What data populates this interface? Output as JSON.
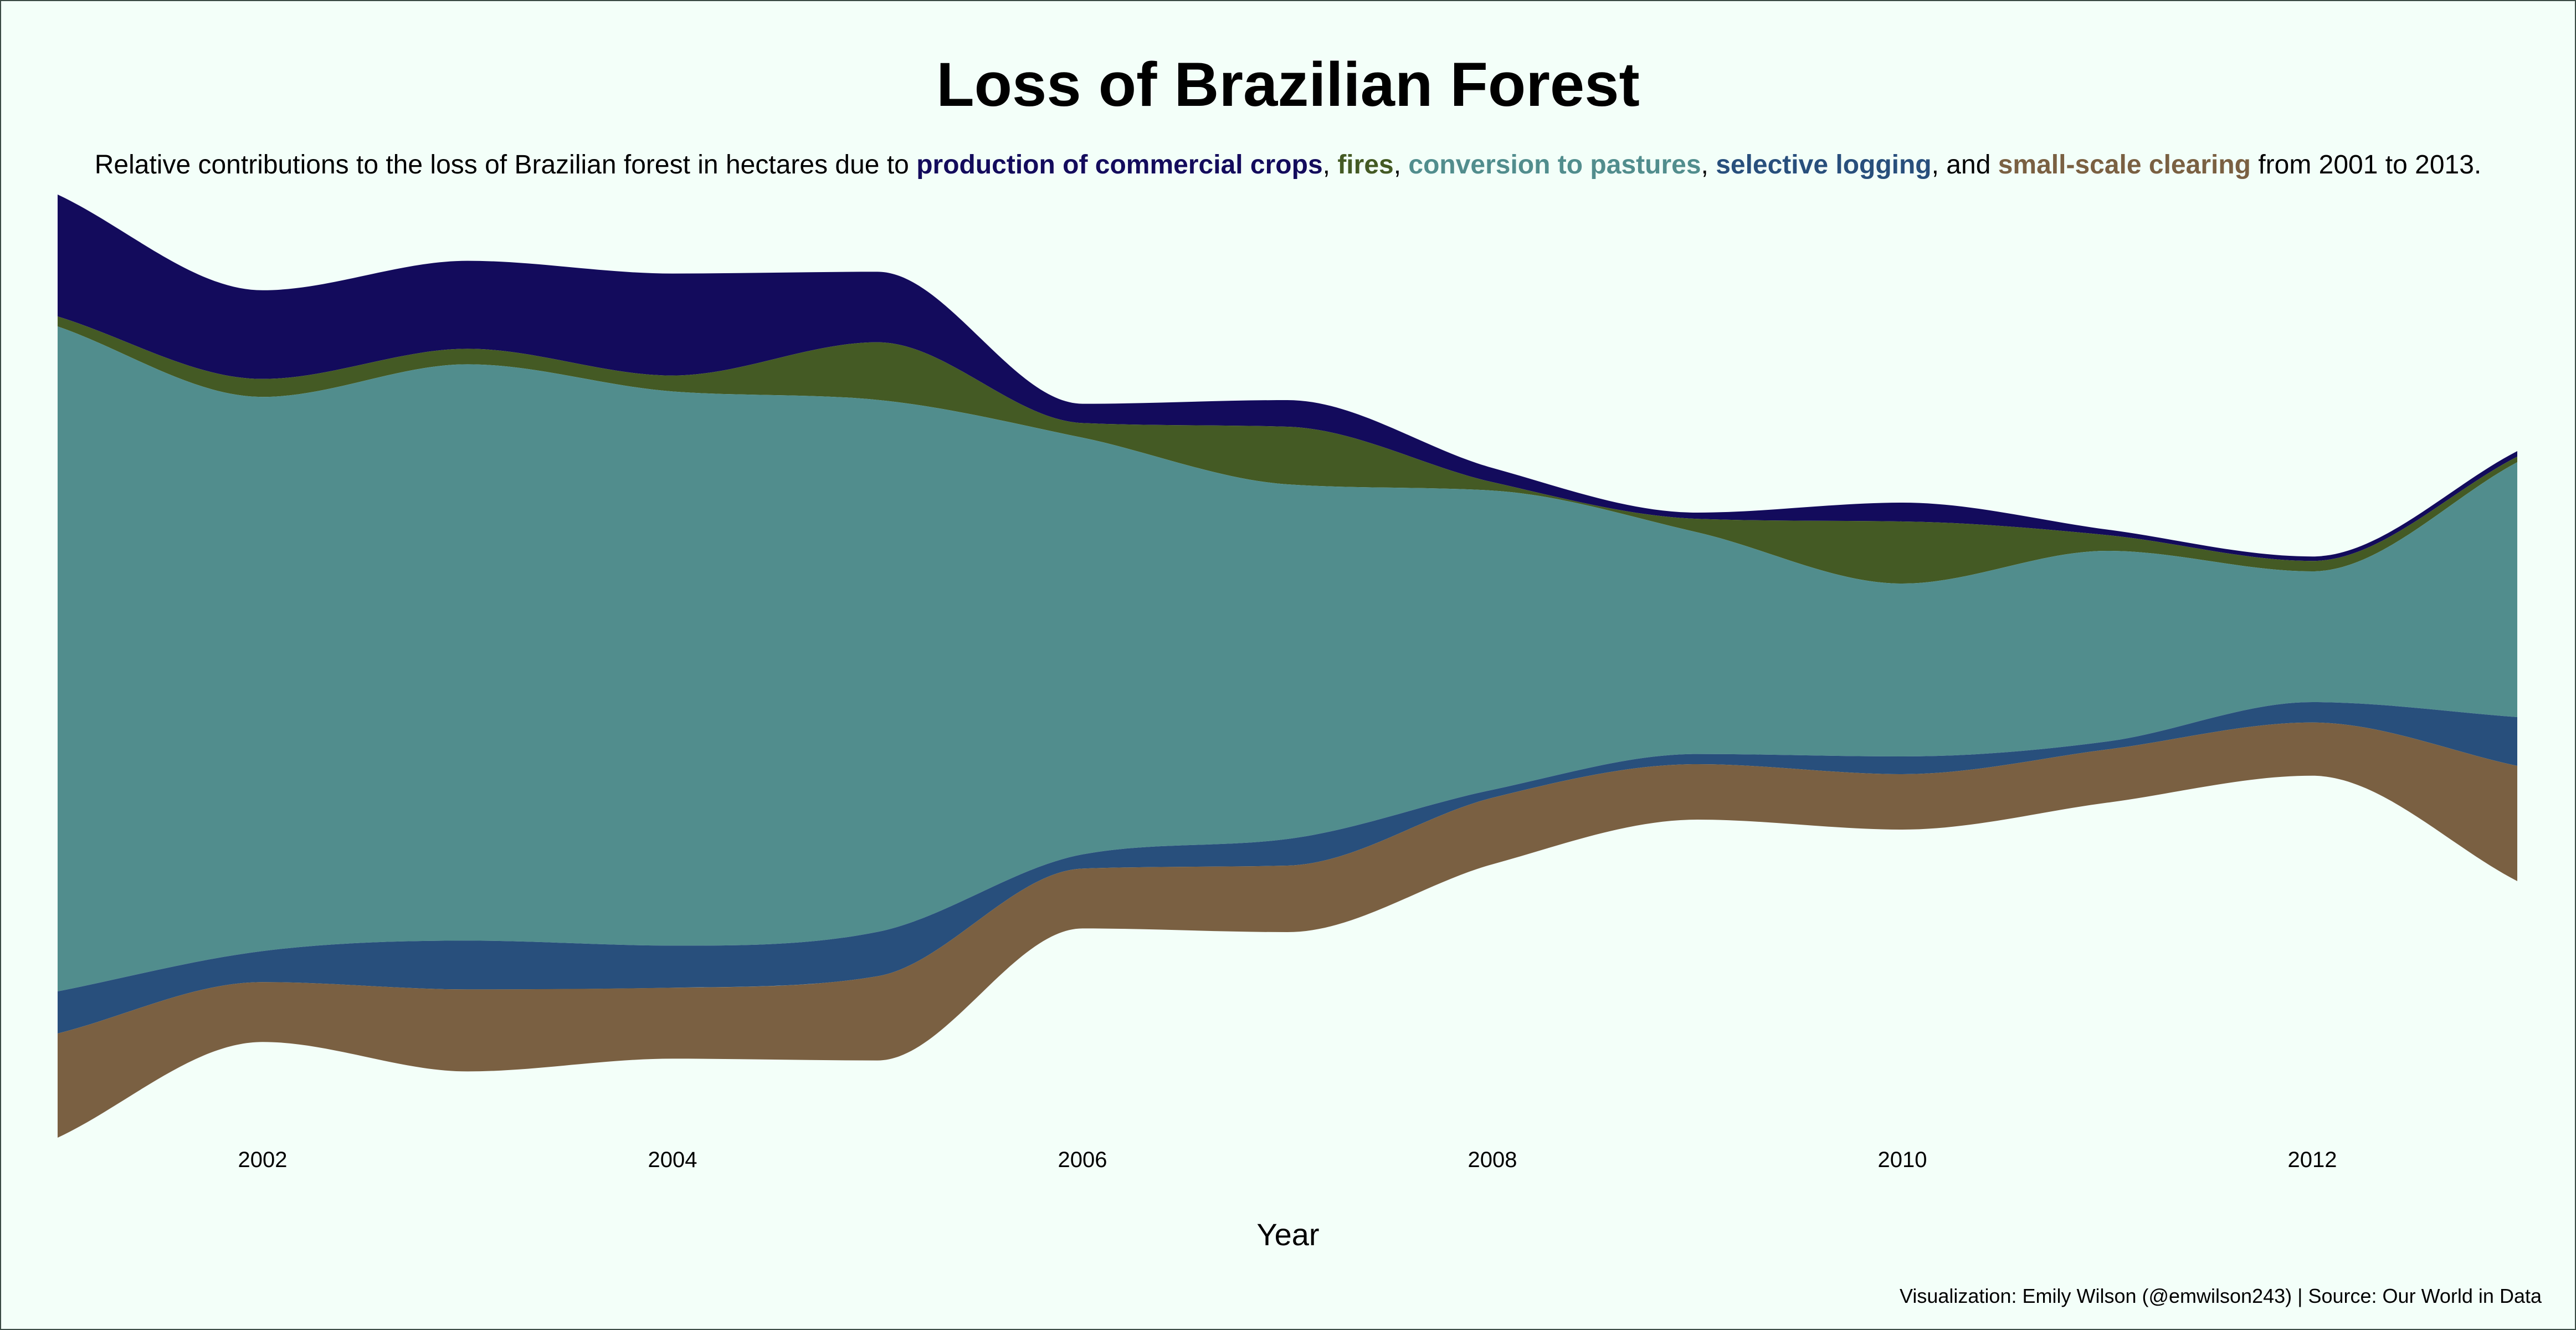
{
  "chart_data": {
    "type": "area",
    "variant": "streamgraph",
    "title": "Loss of Brazilian Forest",
    "subtitle": {
      "prefix": "Relative contributions to the loss of Brazilian forest in hectares due to ",
      "terms": [
        "production of commercial crops",
        "fires",
        "conversion to pastures",
        "selective logging",
        "small-scale clearing"
      ],
      "sep1": ", ",
      "sep2": ", ",
      "sep3": ", ",
      "sep4": ", and ",
      "suffix": " from 2001 to 2013."
    },
    "xlabel": "Year",
    "ylabel": "",
    "caption": "Visualization: Emily Wilson (@emwilson243) | Source: Our World in Data",
    "x": [
      2001,
      2002,
      2003,
      2004,
      2005,
      2006,
      2007,
      2008,
      2009,
      2010,
      2011,
      2012,
      2013
    ],
    "xticks": [
      "2002",
      "2004",
      "2006",
      "2008",
      "2010",
      "2012"
    ],
    "xtick_values": [
      2002,
      2004,
      2006,
      2008,
      2010,
      2012
    ],
    "xlim": [
      2001,
      2013
    ],
    "value_unit": "hectares",
    "series": [
      {
        "name": "production of commercial crops",
        "color": "#130b5c",
        "values": [
          550000,
          400000,
          397000,
          460000,
          318000,
          87000,
          120000,
          64000,
          28000,
          85000,
          25000,
          20000,
          25000
        ]
      },
      {
        "name": "fires",
        "color": "#445a24",
        "values": [
          45000,
          81000,
          70000,
          72000,
          260000,
          66000,
          260000,
          38000,
          61000,
          280000,
          71000,
          47000,
          25000
        ]
      },
      {
        "name": "conversion to pastures",
        "color": "#518d8d",
        "values": [
          3000000,
          2500000,
          2600000,
          2500000,
          2400000,
          1880000,
          1600000,
          1350000,
          1000000,
          780000,
          860000,
          590000,
          1150000
        ]
      },
      {
        "name": "selective logging",
        "color": "#284f7c",
        "values": [
          190000,
          140000,
          220000,
          190000,
          200000,
          64000,
          120000,
          36000,
          46000,
          80000,
          36000,
          92000,
          220000
        ]
      },
      {
        "name": "small-scale clearing",
        "color": "#7a6042",
        "values": [
          470000,
          270000,
          370000,
          320000,
          380000,
          270000,
          300000,
          300000,
          250000,
          250000,
          240000,
          240000,
          520000
        ]
      }
    ],
    "colors": {
      "background": "#f3fff9",
      "border": "#3a4a44"
    },
    "grid": false,
    "legend": "none"
  }
}
